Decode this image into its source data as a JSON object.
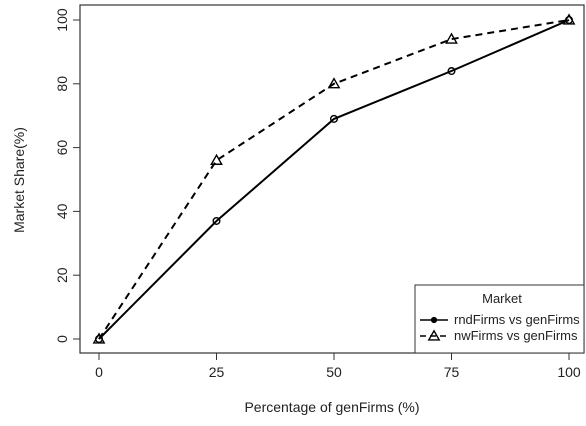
{
  "chart_data": {
    "type": "line",
    "title": "",
    "xlabel": "Percentage of genFirms (%)",
    "ylabel": "Market Share(%)",
    "x": [
      0,
      25,
      50,
      75,
      100
    ],
    "xticks": [
      "0",
      "25",
      "50",
      "75",
      "100"
    ],
    "yticks": [
      "0",
      "20",
      "40",
      "60",
      "80",
      "100"
    ],
    "xlim": [
      0,
      100
    ],
    "ylim": [
      0,
      100
    ],
    "grid": false,
    "legend": {
      "title": "Market",
      "position": "bottom-right"
    },
    "series": [
      {
        "name": "rndFirms vs genFirms",
        "values": [
          0,
          37,
          69,
          84,
          100
        ],
        "line_style": "solid",
        "marker": "circle",
        "color": "#000000"
      },
      {
        "name": "nwFirms vs genFirms",
        "values": [
          0,
          56,
          80,
          94,
          100
        ],
        "line_style": "dashed",
        "marker": "triangle",
        "color": "#000000"
      }
    ]
  }
}
